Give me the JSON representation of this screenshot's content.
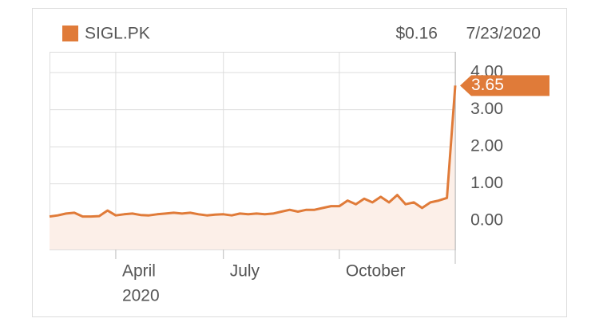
{
  "chart_data": {
    "type": "line",
    "series": [
      {
        "name": "SIGL.PK",
        "color": "#e07b39",
        "fill": "#fcefe8",
        "values": [
          0.12,
          0.15,
          0.2,
          0.22,
          0.12,
          0.12,
          0.13,
          0.28,
          0.15,
          0.18,
          0.2,
          0.16,
          0.15,
          0.18,
          0.2,
          0.22,
          0.2,
          0.22,
          0.18,
          0.15,
          0.17,
          0.18,
          0.15,
          0.2,
          0.18,
          0.2,
          0.18,
          0.2,
          0.25,
          0.3,
          0.25,
          0.3,
          0.3,
          0.35,
          0.4,
          0.4,
          0.55,
          0.45,
          0.6,
          0.5,
          0.65,
          0.5,
          0.7,
          0.45,
          0.5,
          0.35,
          0.5,
          0.55,
          0.62,
          3.65
        ]
      }
    ],
    "categories": [
      null,
      null,
      null,
      null,
      null,
      null,
      null,
      null,
      "April",
      null,
      null,
      null,
      null,
      null,
      null,
      null,
      null,
      null,
      null,
      null,
      null,
      "July",
      null,
      null,
      null,
      null,
      null,
      null,
      null,
      null,
      null,
      null,
      null,
      null,
      null,
      "October",
      null,
      null,
      null,
      null,
      null,
      null,
      null,
      null,
      null,
      null,
      null,
      null,
      null,
      null
    ],
    "year_label": "2020",
    "price_label": "$0.16",
    "date_label": "7/23/2020",
    "ylim": [
      -0.77,
      4.56
    ],
    "yticks": [
      {
        "value": 0,
        "label": "0.00"
      },
      {
        "value": 1,
        "label": "1.00"
      },
      {
        "value": 2,
        "label": "2.00"
      },
      {
        "value": 3,
        "label": "3.00"
      },
      {
        "value": 4,
        "label": "4.00"
      }
    ],
    "grid": true
  }
}
